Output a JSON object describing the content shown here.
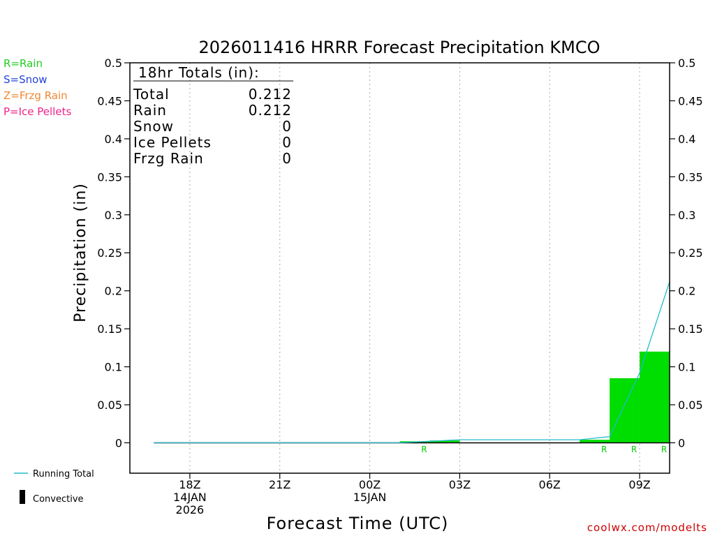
{
  "chart_data": {
    "type": "bar",
    "title": "2026011416 HRRR Forecast Precipitation KMCO",
    "xlabel": "Forecast Time (UTC)",
    "ylabel": "Precipitation (in)",
    "ylim": [
      -0.04,
      0.5
    ],
    "xlim_hours": [
      16.0,
      34.0
    ],
    "yticks": [
      0,
      0.05,
      0.1,
      0.15,
      0.2,
      0.25,
      0.3,
      0.35,
      0.4,
      0.45,
      0.5
    ],
    "ytick_labels": [
      "0",
      "0.05",
      "0.1",
      "0.15",
      "0.2",
      "0.25",
      "0.3",
      "0.35",
      "0.4",
      "0.45",
      "0.5"
    ],
    "xticks": [
      {
        "hour": 18,
        "lines": [
          "18Z",
          "14JAN",
          "2026"
        ]
      },
      {
        "hour": 21,
        "lines": [
          "21Z"
        ]
      },
      {
        "hour": 24,
        "lines": [
          "00Z",
          "15JAN"
        ]
      },
      {
        "hour": 27,
        "lines": [
          "03Z"
        ]
      },
      {
        "hour": 30,
        "lines": [
          "06Z"
        ]
      },
      {
        "hour": 33,
        "lines": [
          "09Z"
        ]
      }
    ],
    "bars": [
      {
        "start": 17,
        "end": 18,
        "value": 0.0
      },
      {
        "start": 18,
        "end": 19,
        "value": 0.0
      },
      {
        "start": 19,
        "end": 20,
        "value": 0.0
      },
      {
        "start": 20,
        "end": 21,
        "value": 0.0
      },
      {
        "start": 21,
        "end": 22,
        "value": 0.0
      },
      {
        "start": 22,
        "end": 23,
        "value": 0.0
      },
      {
        "start": 23,
        "end": 24,
        "value": 0.0
      },
      {
        "start": 24,
        "end": 25,
        "value": 0.0
      },
      {
        "start": 25,
        "end": 26,
        "value": 0.002
      },
      {
        "start": 26,
        "end": 27,
        "value": 0.003
      },
      {
        "start": 27,
        "end": 28,
        "value": 0.0
      },
      {
        "start": 28,
        "end": 29,
        "value": 0.0
      },
      {
        "start": 29,
        "end": 30,
        "value": 0.0
      },
      {
        "start": 30,
        "end": 31,
        "value": 0.0
      },
      {
        "start": 31,
        "end": 32,
        "value": 0.004
      },
      {
        "start": 32,
        "end": 33,
        "value": 0.085
      },
      {
        "start": 33,
        "end": 34,
        "value": 0.12
      }
    ],
    "running_total": {
      "name": "Running Total",
      "x": [
        16.8,
        17,
        18,
        19,
        20,
        21,
        22,
        23,
        24,
        25,
        26,
        27,
        28,
        29,
        30,
        31,
        32,
        33,
        34
      ],
      "y": [
        0.0,
        0.0,
        0.0,
        0.0,
        0.0,
        0.0,
        0.0,
        0.0,
        0.0,
        0.0,
        0.002,
        0.004,
        0.004,
        0.004,
        0.004,
        0.004,
        0.008,
        0.092,
        0.212
      ]
    },
    "ptype_markers": [
      {
        "hour": 26,
        "label": "R"
      },
      {
        "hour": 32,
        "label": "R"
      },
      {
        "hour": 33,
        "label": "R"
      },
      {
        "hour": 34,
        "label": "R"
      }
    ],
    "legend_placement": "bottom-left",
    "grid": "vertical dotted at each labeled hour"
  },
  "totals_box": {
    "header": "18hr Totals (in):",
    "rows": [
      {
        "label": "Total",
        "value": "0.212"
      },
      {
        "label": "Rain",
        "value": "0.212"
      },
      {
        "label": "Snow",
        "value": "0"
      },
      {
        "label": "Ice Pellets",
        "value": "0"
      },
      {
        "label": "Frzg Rain",
        "value": "0"
      }
    ]
  },
  "ptype_legend": [
    {
      "text": "R=Rain",
      "color": "#22cc22"
    },
    {
      "text": "S=Snow",
      "color": "#2244dd"
    },
    {
      "text": "Z=Frzg Rain",
      "color": "#ee8833"
    },
    {
      "text": "P=Ice Pellets",
      "color": "#ee2288"
    }
  ],
  "legend": {
    "running_total": "Running Total",
    "convective": "Convective"
  },
  "credit": "coolwx.com/modelts",
  "colors": {
    "bar": "#00dd00",
    "running_total": "#22bbcc",
    "grid": "#aaaaaa",
    "axis": "#000000",
    "credit": "#cc0000"
  }
}
